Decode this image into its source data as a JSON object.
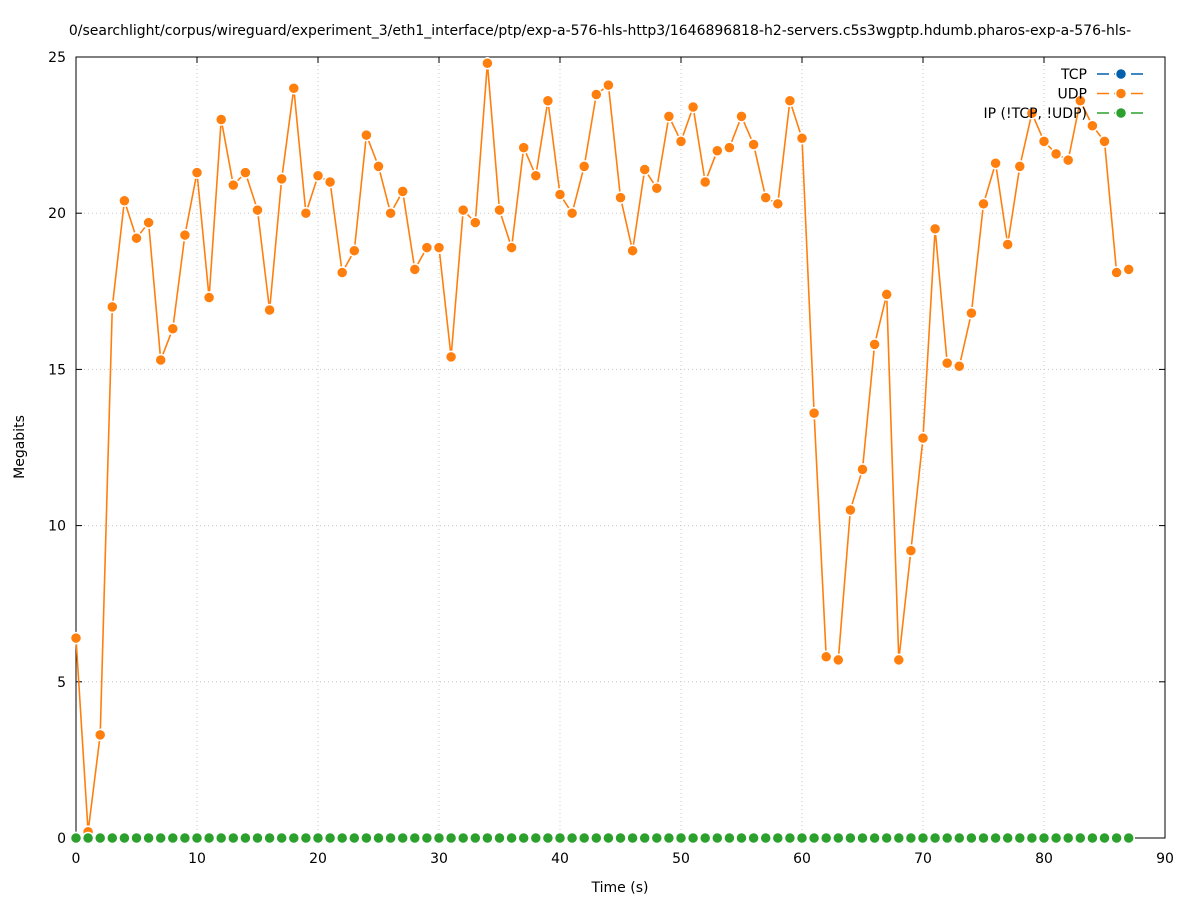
{
  "chart_data": {
    "type": "line",
    "title": "0/searchlight/corpus/wireguard/experiment_3/eth1_interface/ptp/exp-a-576-hls-http3/1646896818-h2-servers.c5s3wgptp.hdumb.pharos-exp-a-576-hls-",
    "xlabel": "Time (s)",
    "ylabel": "Megabits",
    "xlim": [
      0,
      90
    ],
    "ylim": [
      0,
      25
    ],
    "x_ticks": [
      0,
      10,
      20,
      30,
      40,
      50,
      60,
      70,
      80,
      90
    ],
    "y_ticks": [
      0,
      5,
      10,
      15,
      20,
      25
    ],
    "grid": true,
    "legend_position": "top-right",
    "x": [
      0,
      1,
      2,
      3,
      4,
      5,
      6,
      7,
      8,
      9,
      10,
      11,
      12,
      13,
      14,
      15,
      16,
      17,
      18,
      19,
      20,
      21,
      22,
      23,
      24,
      25,
      26,
      27,
      28,
      29,
      30,
      31,
      32,
      33,
      34,
      35,
      36,
      37,
      38,
      39,
      40,
      41,
      42,
      43,
      44,
      45,
      46,
      47,
      48,
      49,
      50,
      51,
      52,
      53,
      54,
      55,
      56,
      57,
      58,
      59,
      60,
      61,
      62,
      63,
      64,
      65,
      66,
      67,
      68,
      69,
      70,
      71,
      72,
      73,
      74,
      75,
      76,
      77,
      78,
      79,
      80,
      81,
      82,
      83,
      84,
      85,
      86,
      87
    ],
    "series": [
      {
        "name": "TCP",
        "color": "#0060ad",
        "values": [
          0,
          0,
          0,
          0,
          0,
          0,
          0,
          0,
          0,
          0,
          0,
          0,
          0,
          0,
          0,
          0,
          0,
          0,
          0,
          0,
          0,
          0,
          0,
          0,
          0,
          0,
          0,
          0,
          0,
          0,
          0,
          0,
          0,
          0,
          0,
          0,
          0,
          0,
          0,
          0,
          0,
          0,
          0,
          0,
          0,
          0,
          0,
          0,
          0,
          0,
          0,
          0,
          0,
          0,
          0,
          0,
          0,
          0,
          0,
          0,
          0,
          0,
          0,
          0,
          0,
          0,
          0,
          0,
          0,
          0,
          0,
          0,
          0,
          0,
          0,
          0,
          0,
          0,
          0,
          0,
          0,
          0,
          0,
          0,
          0,
          0,
          0,
          0
        ]
      },
      {
        "name": "UDP",
        "color": "#ff7f0e",
        "values": [
          6.4,
          0.2,
          3.3,
          17.0,
          20.4,
          19.2,
          19.7,
          15.3,
          16.3,
          19.3,
          21.3,
          17.3,
          23.0,
          20.9,
          21.3,
          20.1,
          16.9,
          21.1,
          24.0,
          20.0,
          21.2,
          21.0,
          18.1,
          18.8,
          22.5,
          21.5,
          20.0,
          20.7,
          18.2,
          18.9,
          18.9,
          15.4,
          20.1,
          19.7,
          24.8,
          20.1,
          18.9,
          22.1,
          21.2,
          23.6,
          20.6,
          20.0,
          21.5,
          23.8,
          24.1,
          20.5,
          18.8,
          21.4,
          20.8,
          23.1,
          22.3,
          23.4,
          21.0,
          22.0,
          22.1,
          23.1,
          22.2,
          20.5,
          20.3,
          23.6,
          22.4,
          13.6,
          5.8,
          5.7,
          10.5,
          11.8,
          15.8,
          17.4,
          5.7,
          9.2,
          12.8,
          19.5,
          15.2,
          15.1,
          16.8,
          20.3,
          21.6,
          19.0,
          21.5,
          23.2,
          22.3,
          21.9,
          21.7,
          23.6,
          22.8,
          22.3,
          18.1,
          18.2
        ]
      },
      {
        "name": "IP (!TCP, !UDP)",
        "color": "#2ca02c",
        "values": [
          0,
          0,
          0,
          0,
          0,
          0,
          0,
          0,
          0,
          0,
          0,
          0,
          0,
          0,
          0,
          0,
          0,
          0,
          0,
          0,
          0,
          0,
          0,
          0,
          0,
          0,
          0,
          0,
          0,
          0,
          0,
          0,
          0,
          0,
          0,
          0,
          0,
          0,
          0,
          0,
          0,
          0,
          0,
          0,
          0,
          0,
          0,
          0,
          0,
          0,
          0,
          0,
          0,
          0,
          0,
          0,
          0,
          0,
          0,
          0,
          0,
          0,
          0,
          0,
          0,
          0,
          0,
          0,
          0,
          0,
          0,
          0,
          0,
          0,
          0,
          0,
          0,
          0,
          0,
          0,
          0,
          0,
          0,
          0,
          0,
          0,
          0,
          0
        ]
      }
    ]
  }
}
